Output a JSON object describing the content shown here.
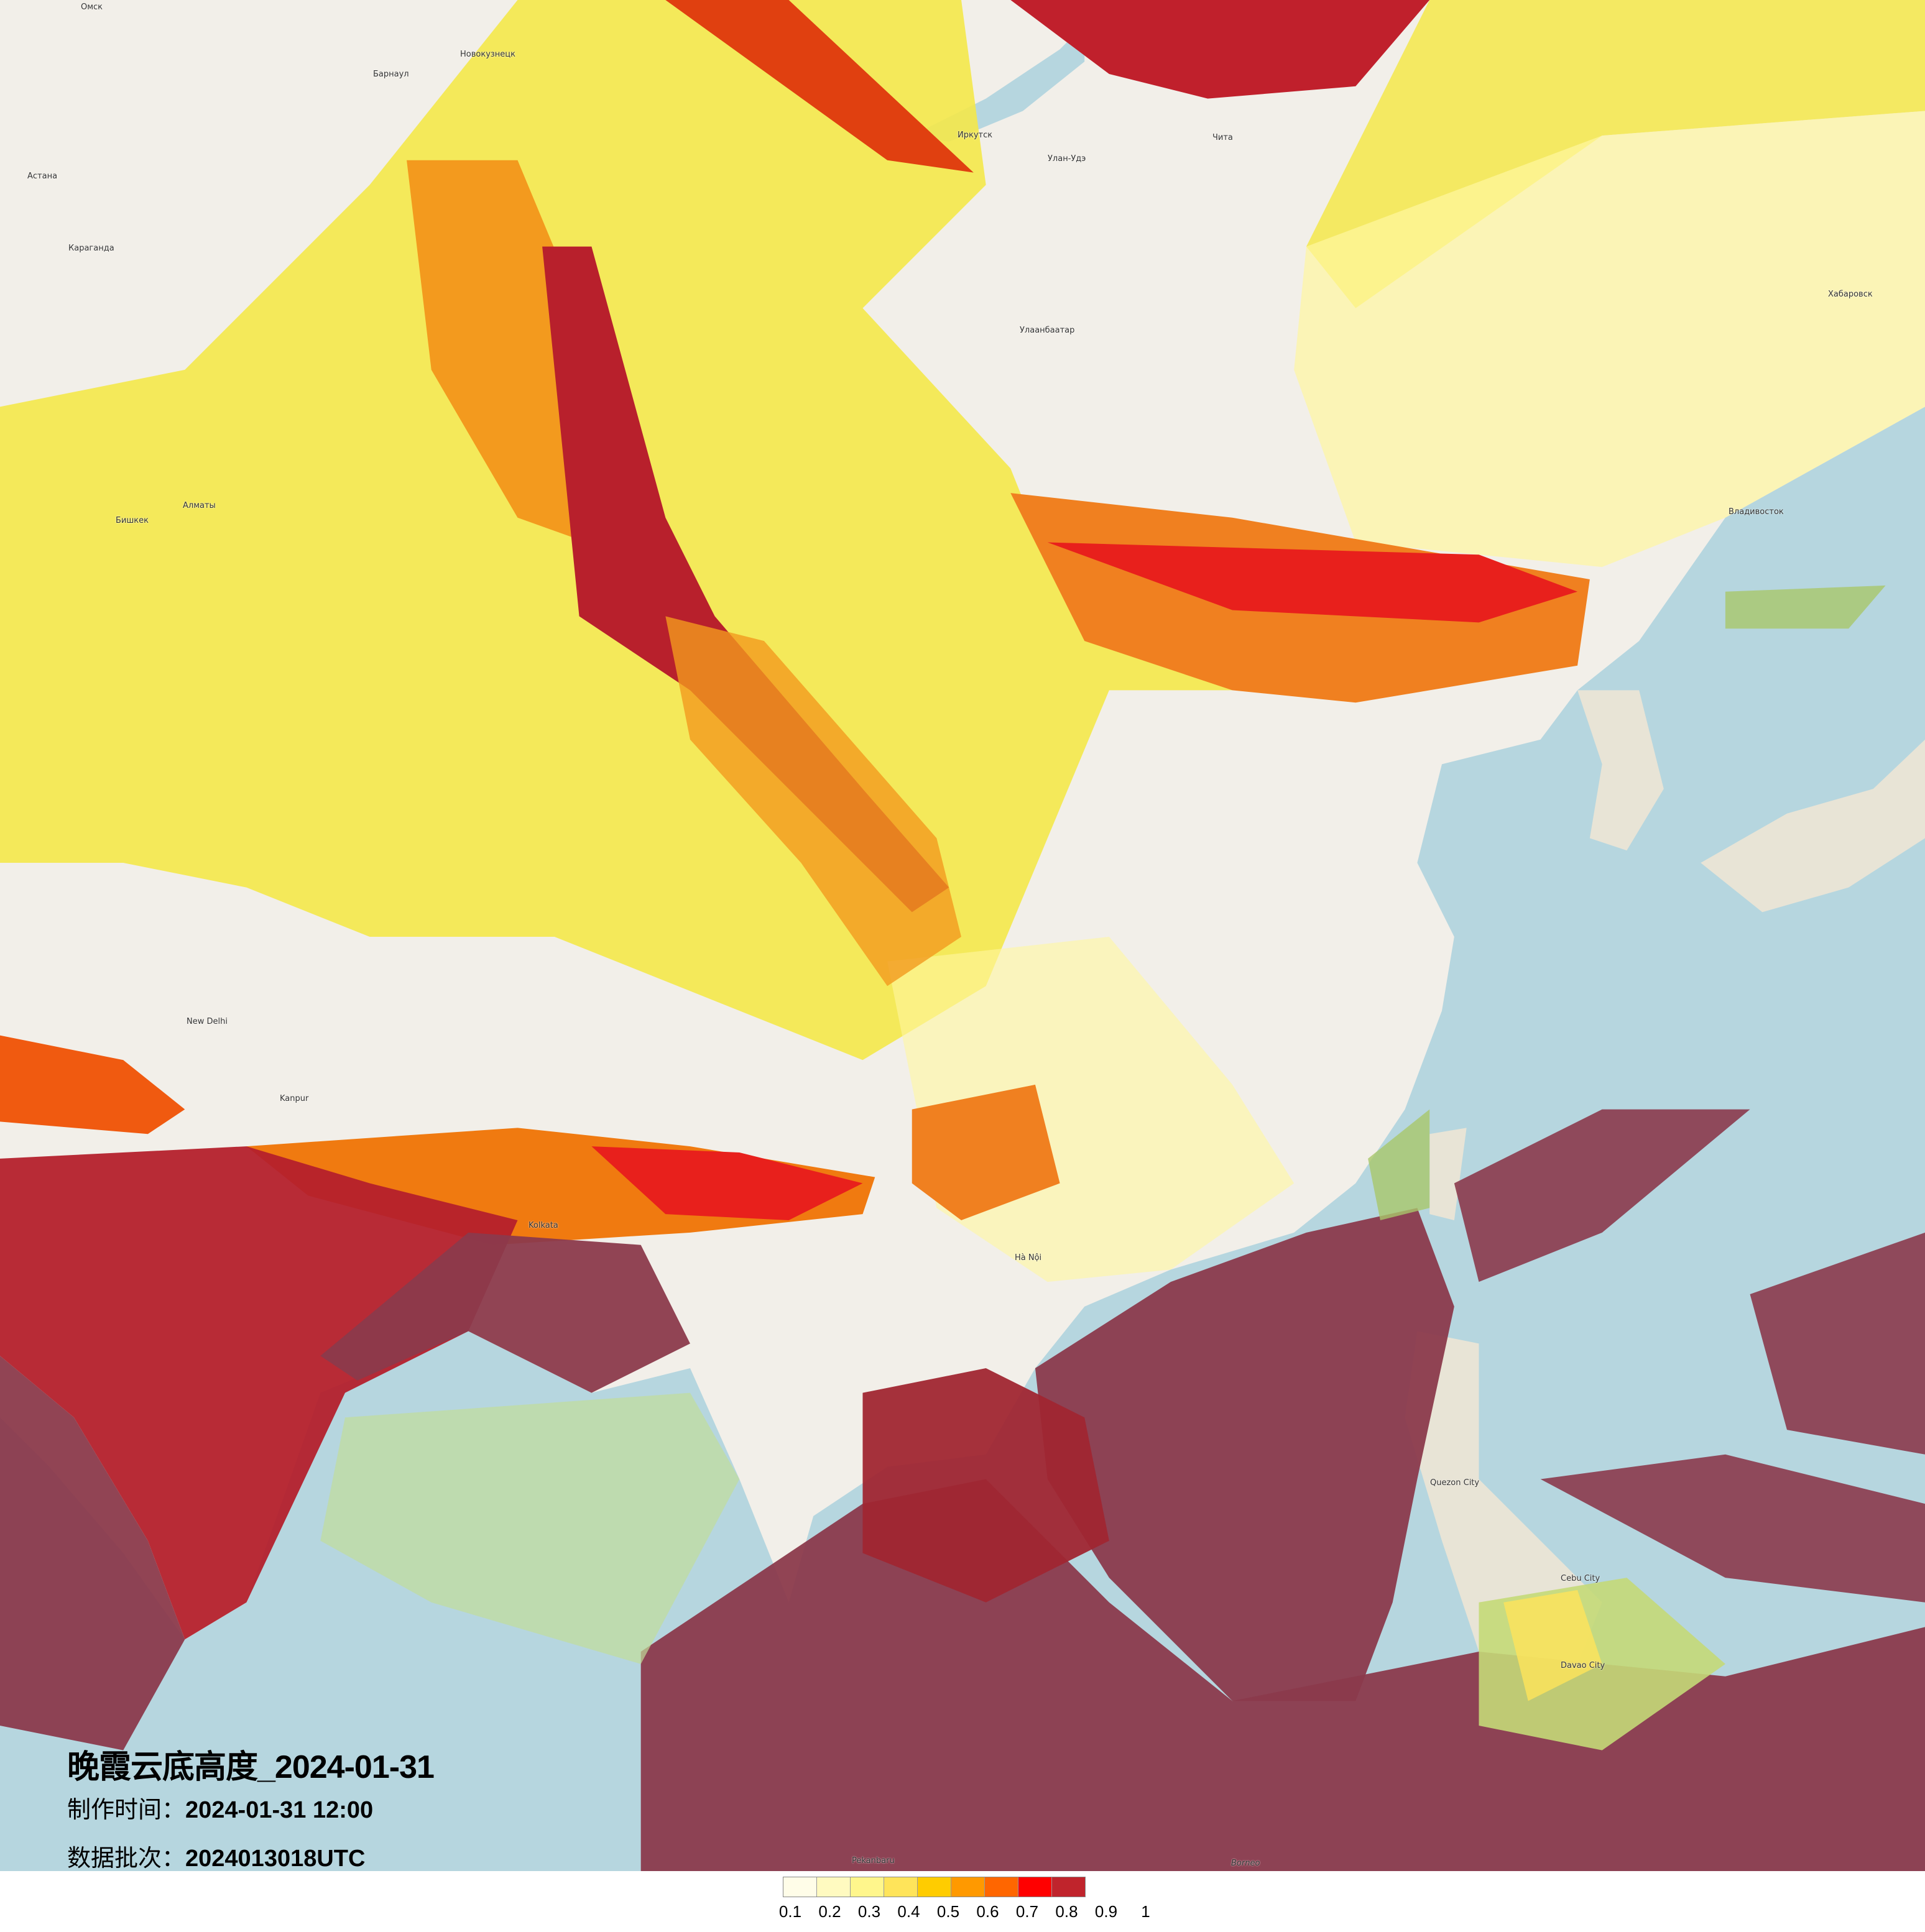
{
  "title": {
    "main": "晚霞云底高度_2024-01-31",
    "made_label": "制作时间：",
    "made_value": "2024-01-31 12:00",
    "batch_label": "数据批次：",
    "batch_value": "2024013018UTC"
  },
  "legend": {
    "colors": [
      "#fffde8",
      "#fffac0",
      "#fff68c",
      "#ffe45a",
      "#ffcc00",
      "#ff9900",
      "#ff6600",
      "#ff0000",
      "#c0242c"
    ],
    "ticks": [
      "0.1",
      "0.2",
      "0.3",
      "0.4",
      "0.5",
      "0.6",
      "0.7",
      "0.8",
      "0.9",
      "1"
    ]
  },
  "places": [
    {
      "name": "Омск"
    },
    {
      "name": "Новокузнецк"
    },
    {
      "name": "Барнаул"
    },
    {
      "name": "Иркутск"
    },
    {
      "name": "Улан-Удэ"
    },
    {
      "name": "Чита"
    },
    {
      "name": "Астана"
    },
    {
      "name": "Караганда"
    },
    {
      "name": "Улаанбаатар"
    },
    {
      "name": "Хабаровск"
    },
    {
      "name": "Владивосток"
    },
    {
      "name": "Алматы"
    },
    {
      "name": "Бишкек"
    },
    {
      "name": "New Delhi"
    },
    {
      "name": "Kanpur"
    },
    {
      "name": "Kolkata"
    },
    {
      "name": "Hà Nội"
    },
    {
      "name": "Quezon City"
    },
    {
      "name": "Cebu City"
    },
    {
      "name": "Davao City"
    },
    {
      "name": "Borneo"
    },
    {
      "name": "Pekanbaru"
    }
  ]
}
